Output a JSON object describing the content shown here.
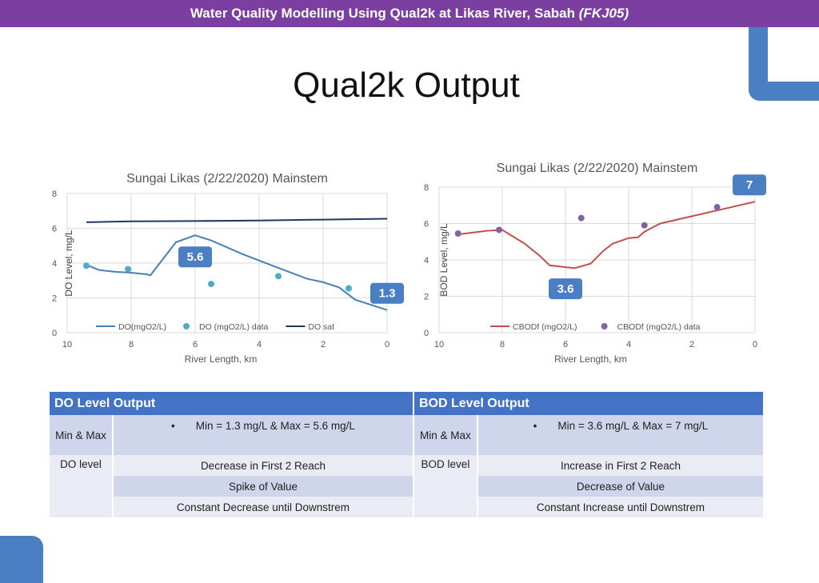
{
  "banner": {
    "title": "Water Quality Modelling Using Qual2k at Likas River, Sabah",
    "course": "(FKJ05)"
  },
  "slide": {
    "title": "Qual2k Output"
  },
  "colors": {
    "banner": "#7a3fa0",
    "accent": "#4a7fc3",
    "table_header": "#4472c4"
  },
  "chart_data": [
    {
      "type": "line",
      "title": "Sungai Likas (2/22/2020) Mainstem",
      "xlabel": "River Length, km",
      "ylabel": "DO Level, mg/L",
      "xlim": [
        10,
        0
      ],
      "ylim": [
        0,
        8
      ],
      "xticks": [
        "10",
        "8",
        "6",
        "4",
        "2",
        "0"
      ],
      "yticks": [
        "0",
        "2",
        "4",
        "6",
        "8"
      ],
      "grid": true,
      "legend_position": "bottom",
      "series": [
        {
          "name": "DO(mgO2/L)",
          "kind": "line",
          "color": "#4a7fb5",
          "x": [
            9.4,
            9.0,
            8.5,
            8.0,
            7.5,
            7.4,
            6.6,
            6.0,
            5.5,
            4.5,
            3.5,
            2.5,
            2.0,
            1.5,
            1.0,
            0.5,
            0.0
          ],
          "y": [
            3.9,
            3.6,
            3.5,
            3.45,
            3.35,
            3.3,
            5.2,
            5.6,
            5.3,
            4.5,
            3.8,
            3.1,
            2.9,
            2.6,
            1.9,
            1.6,
            1.3
          ]
        },
        {
          "name": "DO (mgO2/L) data",
          "kind": "scatter",
          "color": "#4aacc5",
          "x": [
            9.4,
            8.1,
            5.5,
            3.4,
            1.2
          ],
          "y": [
            3.85,
            3.65,
            2.8,
            3.25,
            2.55
          ]
        },
        {
          "name": "DO sat",
          "kind": "line",
          "color": "#1f3864",
          "x": [
            9.4,
            8.0,
            6.0,
            4.0,
            2.0,
            0.0
          ],
          "y": [
            6.35,
            6.4,
            6.42,
            6.45,
            6.5,
            6.55
          ]
        }
      ],
      "callouts": [
        {
          "label": "5.6",
          "x": 6.0,
          "y": 5.6
        },
        {
          "label": "1.3",
          "x": 0.0,
          "y": 1.3
        }
      ]
    },
    {
      "type": "line",
      "title": "Sungai Likas (2/22/2020) Mainstem",
      "xlabel": "River Length, km",
      "ylabel": "BOD Level, mg/L",
      "xlim": [
        10,
        0
      ],
      "ylim": [
        0,
        8
      ],
      "xticks": [
        "10",
        "8",
        "6",
        "4",
        "2",
        "0"
      ],
      "yticks": [
        "0",
        "2",
        "4",
        "6",
        "8"
      ],
      "grid": true,
      "legend_position": "bottom",
      "series": [
        {
          "name": "CBODf (mgO2/L)",
          "kind": "line",
          "color": "#c0504d",
          "x": [
            9.4,
            8.5,
            8.0,
            7.3,
            6.8,
            6.5,
            6.0,
            5.7,
            5.2,
            4.8,
            4.5,
            4.0,
            3.7,
            3.5,
            3.0,
            2.0,
            1.0,
            0.0
          ],
          "y": [
            5.4,
            5.6,
            5.65,
            4.9,
            4.2,
            3.7,
            3.6,
            3.55,
            3.8,
            4.5,
            4.9,
            5.2,
            5.25,
            5.55,
            6.0,
            6.4,
            6.8,
            7.2
          ]
        },
        {
          "name": "CBODf (mgO2/L) data",
          "kind": "scatter",
          "color": "#8064a2",
          "x": [
            9.4,
            8.1,
            5.5,
            3.5,
            1.2
          ],
          "y": [
            5.45,
            5.65,
            6.3,
            5.9,
            6.9
          ]
        }
      ],
      "callouts": [
        {
          "label": "3.6",
          "x": 6.0,
          "y": 3.6
        },
        {
          "label": "7",
          "x": 0.0,
          "y": 7.2
        }
      ]
    }
  ],
  "table": {
    "do_header": "DO Level Output",
    "bod_header": "BOD Level Output",
    "minmax_label": "Min & Max",
    "bullet": "•",
    "do_minmax": "Min = 1.3 mg/L & Max = 5.6 mg/L",
    "bod_minmax": "Min = 3.6 mg/L & Max = 7 mg/L",
    "do_level_label": "DO level",
    "bod_level_label": "BOD level",
    "do_rows": [
      "Decrease in First 2 Reach",
      "Spike of Value",
      "Constant Decrease until Downstrem"
    ],
    "bod_rows": [
      "Increase in First 2 Reach",
      "Decrease of Value",
      "Constant Increase until Downstrem"
    ]
  }
}
